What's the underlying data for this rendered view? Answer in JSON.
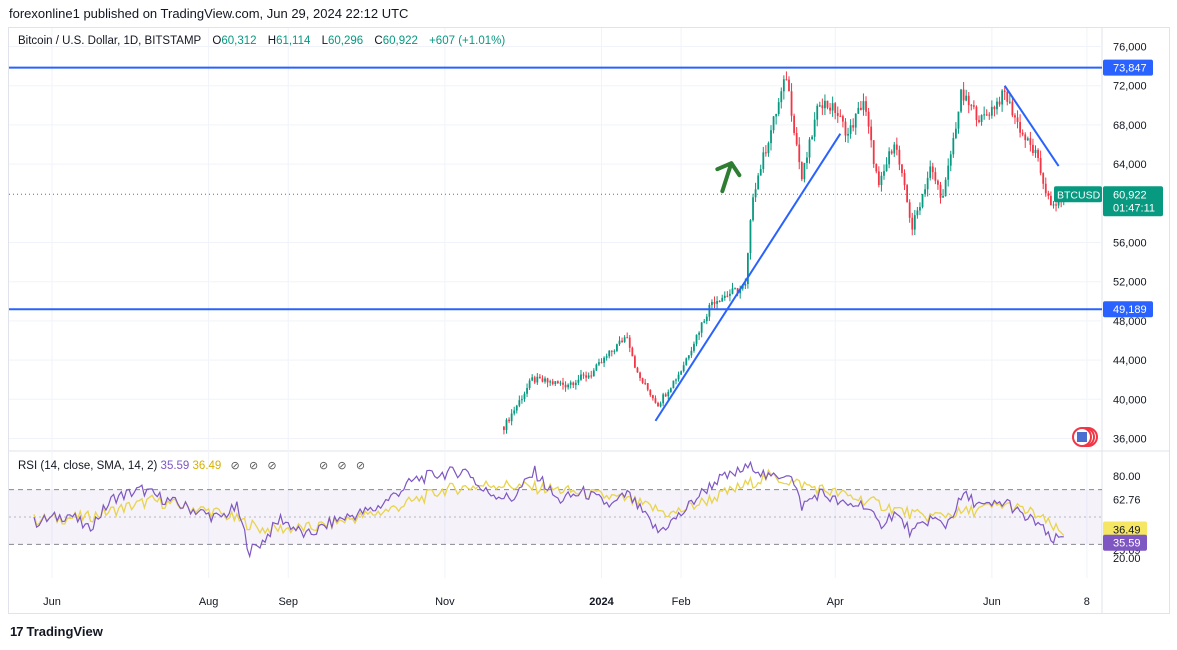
{
  "header": {
    "published": "forexonline1 published on TradingView.com, Jun 29, 2024 22:12 UTC"
  },
  "legend": {
    "symbol": "Bitcoin / U.S. Dollar, 1D, BITSTAMP",
    "open_label": "O",
    "open": "60,312",
    "high_label": "H",
    "high": "61,114",
    "low_label": "L",
    "low": "60,296",
    "close_label": "C",
    "close": "60,922",
    "change": "+607 (+1.01%)"
  },
  "rsi_legend": {
    "label": "RSI (14, close, SMA, 14, 2)",
    "rsi_value": "35.59",
    "sma_value": "36.49",
    "hidden_icon": "⊘"
  },
  "footer": {
    "brand": "TradingView"
  },
  "colors": {
    "up": "#089981",
    "down": "#f23645",
    "trendline": "#2962ff",
    "rsi": "#7e57c2",
    "rsi_sma": "#e8d44d",
    "arrow": "#2e7d32"
  },
  "chart_data": [
    {
      "type": "candlestick",
      "title": "Bitcoin / U.S. Dollar, 1D, BITSTAMP",
      "ylim": [
        35000,
        77000
      ],
      "price_ticks": [
        "76,000",
        "72,000",
        "68,000",
        "64,000",
        "56,000",
        "52,000",
        "48,000",
        "44,000",
        "40,000",
        "36,000"
      ],
      "x_ticks": [
        "Jun",
        "Aug",
        "Sep",
        "Nov",
        "2024",
        "Feb",
        "Apr",
        "Jun",
        "8"
      ],
      "x_ticks_bold": [
        "2024"
      ],
      "x_range": [
        "2023-05-25",
        "2024-07-10"
      ],
      "last_bar": "2024-06-29",
      "horizontal_lines": [
        {
          "label": "73,847",
          "value": 73847
        },
        {
          "label": "49,189",
          "value": 49189
        }
      ],
      "last_price": {
        "symbol": "BTCUSD",
        "label": "60,922",
        "value": 60922,
        "countdown": "01:47:11"
      },
      "trendlines": [
        {
          "from": [
            "2024-01-22",
            37800
          ],
          "to": [
            "2024-04-03",
            67100
          ]
        },
        {
          "from": [
            "2024-06-06",
            72000
          ],
          "to": [
            "2024-06-27",
            63800
          ]
        }
      ],
      "annotation": {
        "type": "arrow-up",
        "at": [
          "2024-02-19",
          64300
        ]
      },
      "waypoints": [
        [
          "2023-11-24",
          37200
        ],
        [
          "2023-12-05",
          42000
        ],
        [
          "2023-12-18",
          41500
        ],
        [
          "2023-12-28",
          42600
        ],
        [
          "2024-01-11",
          46600
        ],
        [
          "2024-01-15",
          42500
        ],
        [
          "2024-01-23",
          39500
        ],
        [
          "2024-02-01",
          43000
        ],
        [
          "2024-02-13",
          50000
        ],
        [
          "2024-02-26",
          51500
        ],
        [
          "2024-02-29",
          61000
        ],
        [
          "2024-03-13",
          73000
        ],
        [
          "2024-03-19",
          62500
        ],
        [
          "2024-03-26",
          70500
        ],
        [
          "2024-04-01",
          69500
        ],
        [
          "2024-04-06",
          67000
        ],
        [
          "2024-04-12",
          70500
        ],
        [
          "2024-04-18",
          61500
        ],
        [
          "2024-04-24",
          66500
        ],
        [
          "2024-05-01",
          57500
        ],
        [
          "2024-05-08",
          63500
        ],
        [
          "2024-05-13",
          60500
        ],
        [
          "2024-05-20",
          71000
        ],
        [
          "2024-05-28",
          68500
        ],
        [
          "2024-06-06",
          71200
        ],
        [
          "2024-06-13",
          67000
        ],
        [
          "2024-06-18",
          65000
        ],
        [
          "2024-06-24",
          59500
        ],
        [
          "2024-06-29",
          60922
        ]
      ]
    },
    {
      "type": "line",
      "title": "RSI (14, close, SMA, 14, 2)",
      "ylim": [
        20,
        90
      ],
      "y_ticks": [
        "80.00",
        "62.76",
        "25.69",
        "20.00"
      ],
      "overbought": 70,
      "middle": 50,
      "oversold": 30,
      "series": [
        {
          "name": "RSI",
          "value_label": "35.59",
          "waypoints": [
            [
              "2023-05-25",
              46
            ],
            [
              "2023-06-08",
              52
            ],
            [
              "2023-06-15",
              41
            ],
            [
              "2023-06-25",
              64
            ],
            [
              "2023-07-06",
              70
            ],
            [
              "2023-07-12",
              65
            ],
            [
              "2023-07-25",
              56
            ],
            [
              "2023-08-05",
              49
            ],
            [
              "2023-08-12",
              57
            ],
            [
              "2023-08-17",
              25
            ],
            [
              "2023-08-22",
              32
            ],
            [
              "2023-08-29",
              49
            ],
            [
              "2023-09-08",
              36
            ],
            [
              "2023-09-20",
              48
            ],
            [
              "2023-10-05",
              56
            ],
            [
              "2023-10-20",
              77
            ],
            [
              "2023-10-28",
              81
            ],
            [
              "2023-11-10",
              84
            ],
            [
              "2023-11-15",
              70
            ],
            [
              "2023-11-27",
              63
            ],
            [
              "2023-12-06",
              83
            ],
            [
              "2023-12-15",
              62
            ],
            [
              "2023-12-25",
              68
            ],
            [
              "2024-01-05",
              58
            ],
            [
              "2024-01-11",
              67
            ],
            [
              "2024-01-23",
              39
            ],
            [
              "2024-02-01",
              52
            ],
            [
              "2024-02-08",
              66
            ],
            [
              "2024-02-15",
              77
            ],
            [
              "2024-02-20",
              80
            ],
            [
              "2024-02-29",
              88
            ],
            [
              "2024-03-06",
              78
            ],
            [
              "2024-03-14",
              83
            ],
            [
              "2024-03-19",
              58
            ],
            [
              "2024-03-26",
              68
            ],
            [
              "2024-04-05",
              58
            ],
            [
              "2024-04-12",
              60
            ],
            [
              "2024-04-18",
              44
            ],
            [
              "2024-04-24",
              53
            ],
            [
              "2024-05-01",
              38
            ],
            [
              "2024-05-08",
              49
            ],
            [
              "2024-05-14",
              44
            ],
            [
              "2024-05-21",
              66
            ],
            [
              "2024-05-29",
              57
            ],
            [
              "2024-06-07",
              61
            ],
            [
              "2024-06-13",
              50
            ],
            [
              "2024-06-19",
              46
            ],
            [
              "2024-06-24",
              32
            ],
            [
              "2024-06-29",
              35.59
            ]
          ]
        },
        {
          "name": "RSI-based MA",
          "value_label": "36.49",
          "waypoints": [
            [
              "2023-05-25",
              48
            ],
            [
              "2023-06-15",
              50
            ],
            [
              "2023-07-10",
              62
            ],
            [
              "2023-08-05",
              53
            ],
            [
              "2023-08-22",
              41
            ],
            [
              "2023-09-10",
              42
            ],
            [
              "2023-10-10",
              55
            ],
            [
              "2023-11-01",
              70
            ],
            [
              "2023-11-20",
              74
            ],
            [
              "2023-12-15",
              70
            ],
            [
              "2024-01-10",
              63
            ],
            [
              "2024-01-28",
              52
            ],
            [
              "2024-02-15",
              65
            ],
            [
              "2024-03-06",
              80
            ],
            [
              "2024-03-25",
              71
            ],
            [
              "2024-04-15",
              61
            ],
            [
              "2024-05-05",
              50
            ],
            [
              "2024-05-20",
              53
            ],
            [
              "2024-06-06",
              59
            ],
            [
              "2024-06-18",
              52
            ],
            [
              "2024-06-29",
              36.49
            ]
          ]
        }
      ]
    }
  ]
}
